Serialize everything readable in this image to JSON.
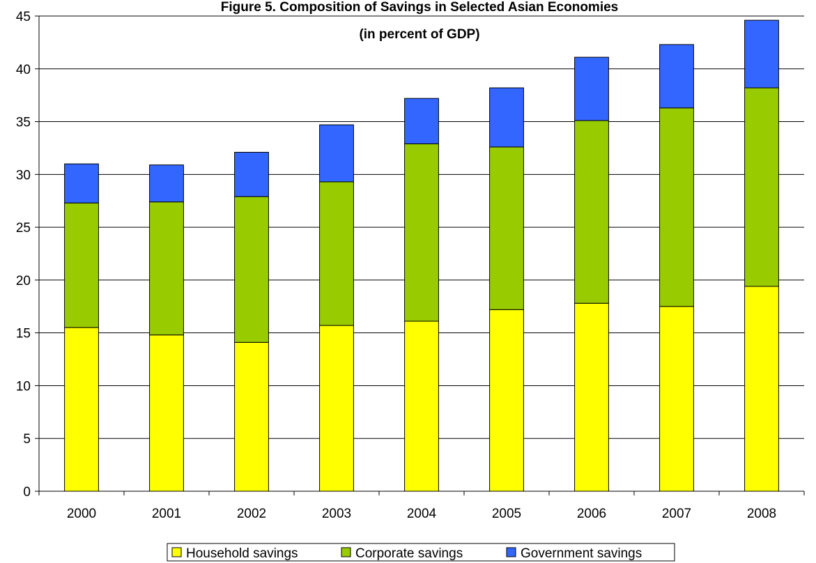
{
  "chart_data": {
    "type": "bar",
    "stacked": true,
    "title": "Figure 5. Composition of Savings in Selected Asian Economies",
    "subtitle": "(in percent of GDP)",
    "categories": [
      "2000",
      "2001",
      "2002",
      "2003",
      "2004",
      "2005",
      "2006",
      "2007",
      "2008"
    ],
    "series": [
      {
        "name": "Household savings",
        "color": "#ffff00",
        "values": [
          15.5,
          14.8,
          14.1,
          15.7,
          16.1,
          17.2,
          17.8,
          17.5,
          19.4
        ]
      },
      {
        "name": "Corporate savings",
        "color": "#99cc00",
        "values": [
          11.8,
          12.6,
          13.8,
          13.6,
          16.8,
          15.4,
          17.3,
          18.8,
          18.8
        ]
      },
      {
        "name": "Government savings",
        "color": "#3366ff",
        "values": [
          3.7,
          3.5,
          4.2,
          5.4,
          4.3,
          5.6,
          6.0,
          6.0,
          6.4
        ]
      }
    ],
    "ylim": [
      0,
      45
    ],
    "yticks": [
      0,
      5,
      10,
      15,
      20,
      25,
      30,
      35,
      40,
      45
    ],
    "grid": true,
    "legend": "bottom"
  }
}
